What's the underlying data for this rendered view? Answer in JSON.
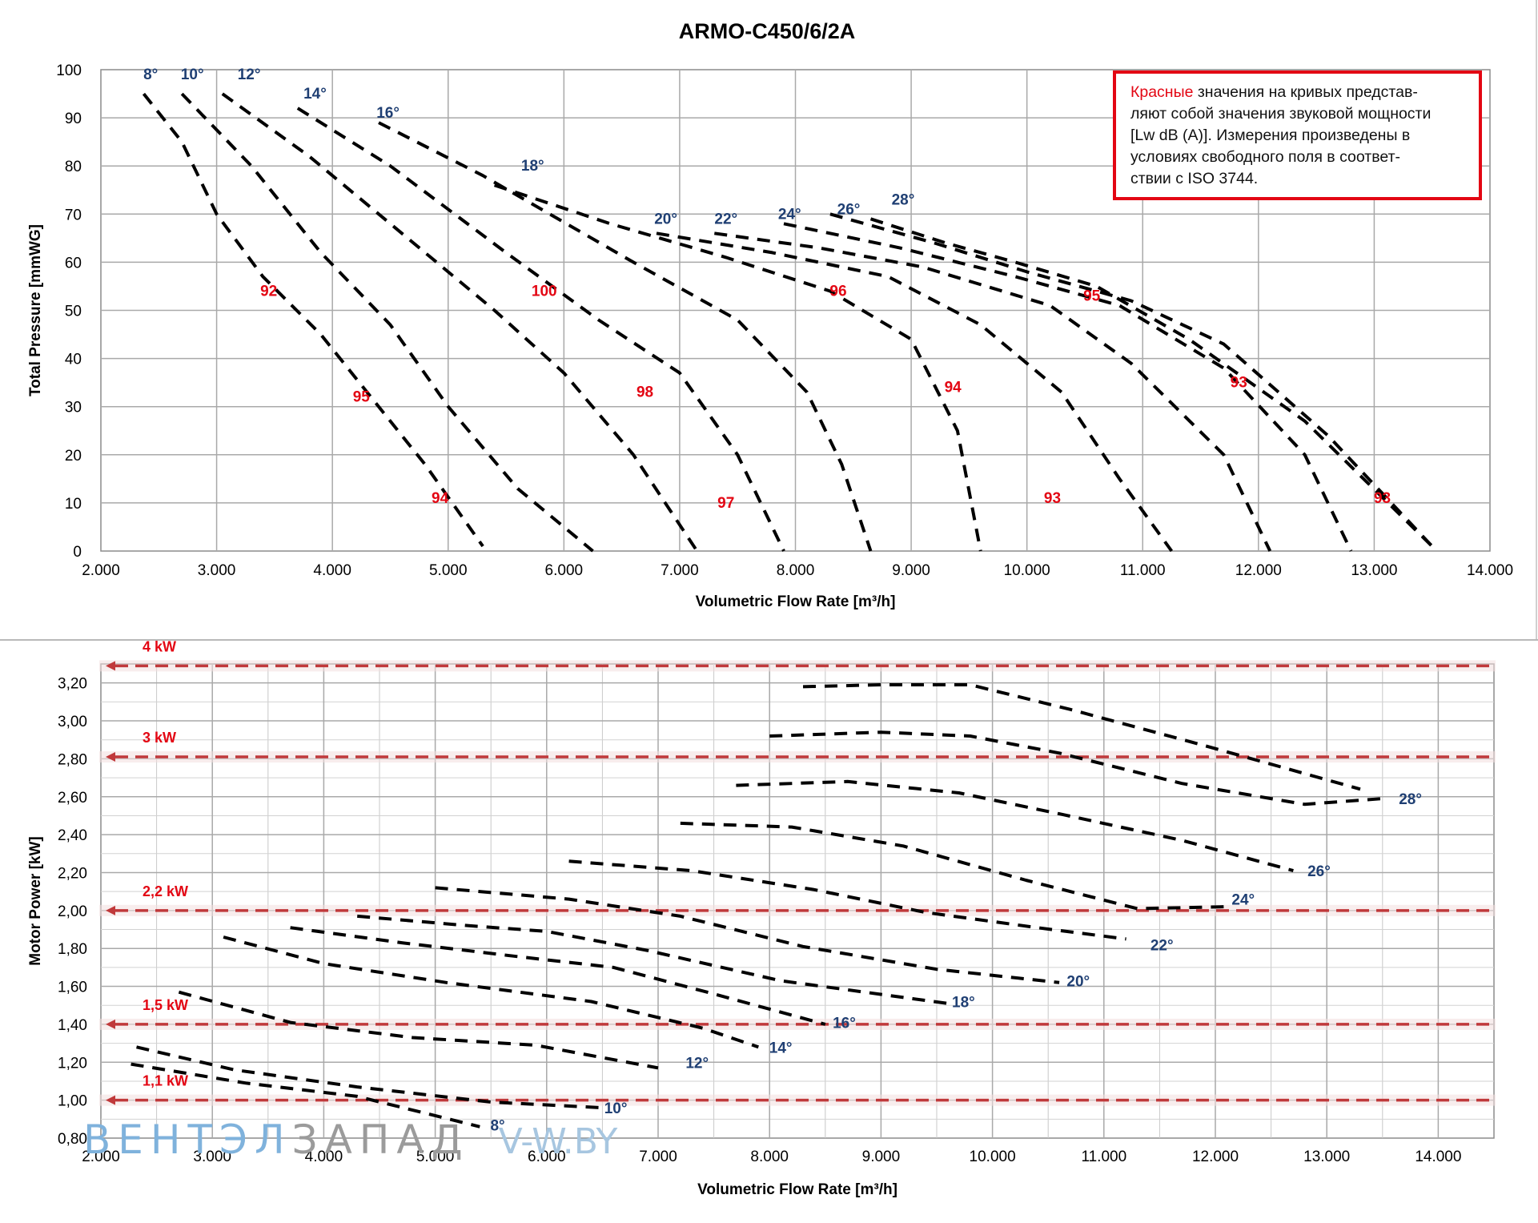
{
  "title": "ARMO-C450/6/2A",
  "note": {
    "red_word": "Красные",
    "rest_first_line": " значения на кривых представ-",
    "lines": [
      "ляют собой значения звуковой мощности",
      "[Lw dB (A)]. Измерения произведены в",
      "условиях свободного поля в соответ-",
      "ствии с ISO 3744."
    ]
  },
  "watermark": {
    "part1": "ВЕНТЭЛ",
    "part2": "ЗАПАД",
    "part3": "V-W.BY"
  },
  "colors": {
    "curve": "#000000",
    "blade_label": "#1f3f73",
    "sound_label": "#e30613",
    "power_line": "#c0393b",
    "grid": "#a9a9a9"
  },
  "chart_data": [
    {
      "type": "line",
      "title": "ARMO-C450/6/2A",
      "xlabel": "Volumetric Flow Rate  [m³/h]",
      "ylabel": "Total Pressure [mmWG]",
      "xlim": [
        2000,
        14000
      ],
      "ylim": [
        0,
        100
      ],
      "x_ticks": [
        "2.000",
        "3.000",
        "4.000",
        "5.000",
        "6.000",
        "7.000",
        "8.000",
        "9.000",
        "10.000",
        "11.000",
        "12.000",
        "13.000",
        "14.000"
      ],
      "y_ticks": [
        "0",
        "10",
        "20",
        "30",
        "40",
        "50",
        "60",
        "70",
        "80",
        "90",
        "100"
      ],
      "grid": true,
      "series": [
        {
          "name": "8°",
          "points": [
            [
              2370,
              95
            ],
            [
              2700,
              85
            ],
            [
              3000,
              70
            ],
            [
              3400,
              57
            ],
            [
              3900,
              45
            ],
            [
              4300,
              33
            ],
            [
              4800,
              18
            ],
            [
              5300,
              1
            ]
          ]
        },
        {
          "name": "10°",
          "points": [
            [
              2700,
              95
            ],
            [
              3300,
              80
            ],
            [
              3900,
              62
            ],
            [
              4500,
              47
            ],
            [
              5000,
              30
            ],
            [
              5600,
              13
            ],
            [
              6250,
              0
            ]
          ]
        },
        {
          "name": "12°",
          "points": [
            [
              3050,
              95
            ],
            [
              3800,
              82
            ],
            [
              4600,
              66
            ],
            [
              5400,
              50
            ],
            [
              6000,
              37
            ],
            [
              6600,
              20
            ],
            [
              7150,
              0
            ]
          ]
        },
        {
          "name": "14°",
          "points": [
            [
              3700,
              92
            ],
            [
              4500,
              80
            ],
            [
              5500,
              62
            ],
            [
              6300,
              48
            ],
            [
              7000,
              37
            ],
            [
              7500,
              20
            ],
            [
              7900,
              0
            ]
          ]
        },
        {
          "name": "16°",
          "points": [
            [
              4400,
              89
            ],
            [
              5300,
              78
            ],
            [
              6600,
              60
            ],
            [
              7500,
              48
            ],
            [
              8100,
              33
            ],
            [
              8400,
              18
            ],
            [
              8650,
              0
            ]
          ]
        },
        {
          "name": "18°",
          "points": [
            [
              5400,
              76
            ],
            [
              6400,
              68
            ],
            [
              7400,
              61
            ],
            [
              8300,
              54
            ],
            [
              9000,
              44
            ],
            [
              9400,
              25
            ],
            [
              9600,
              0
            ]
          ]
        },
        {
          "name": "20°",
          "points": [
            [
              6800,
              66
            ],
            [
              7800,
              62
            ],
            [
              8800,
              57
            ],
            [
              9600,
              47
            ],
            [
              10300,
              33
            ],
            [
              10800,
              15
            ],
            [
              11250,
              0
            ]
          ]
        },
        {
          "name": "22°",
          "points": [
            [
              7300,
              66
            ],
            [
              8200,
              63
            ],
            [
              9100,
              59
            ],
            [
              10200,
              51
            ],
            [
              10900,
              39
            ],
            [
              11700,
              20
            ],
            [
              12100,
              0
            ]
          ]
        },
        {
          "name": "24°",
          "points": [
            [
              7900,
              68
            ],
            [
              8900,
              63
            ],
            [
              9900,
              57
            ],
            [
              10800,
              51
            ],
            [
              11700,
              38
            ],
            [
              12400,
              20
            ],
            [
              12800,
              0
            ]
          ]
        },
        {
          "name": "26°",
          "points": [
            [
              8300,
              70
            ],
            [
              9200,
              64
            ],
            [
              10000,
              58
            ],
            [
              10900,
              52
            ],
            [
              11700,
              43
            ],
            [
              12600,
              24
            ],
            [
              13500,
              1
            ]
          ]
        },
        {
          "name": "28°",
          "points": [
            [
              8650,
              69
            ],
            [
              9300,
              64
            ],
            [
              9900,
              60
            ],
            [
              10600,
              55
            ],
            [
              11400,
              44
            ],
            [
              12400,
              27
            ],
            [
              13500,
              1
            ]
          ]
        }
      ],
      "blade_labels": [
        {
          "text": "8°",
          "x": 2430,
          "y": 98
        },
        {
          "text": "10°",
          "x": 2790,
          "y": 98
        },
        {
          "text": "12°",
          "x": 3280,
          "y": 98
        },
        {
          "text": "14°",
          "x": 3850,
          "y": 94
        },
        {
          "text": "16°",
          "x": 4480,
          "y": 90
        },
        {
          "text": "18°",
          "x": 5730,
          "y": 79
        },
        {
          "text": "20°",
          "x": 6880,
          "y": 68
        },
        {
          "text": "22°",
          "x": 7400,
          "y": 68
        },
        {
          "text": "24°",
          "x": 7950,
          "y": 69
        },
        {
          "text": "26°",
          "x": 8460,
          "y": 70
        },
        {
          "text": "28°",
          "x": 8930,
          "y": 72
        }
      ],
      "sound_labels": [
        {
          "text": "92",
          "x": 3450,
          "y": 53
        },
        {
          "text": "100",
          "x": 5830,
          "y": 53
        },
        {
          "text": "96",
          "x": 8370,
          "y": 53
        },
        {
          "text": "95",
          "x": 10560,
          "y": 52
        },
        {
          "text": "95",
          "x": 4250,
          "y": 31
        },
        {
          "text": "98",
          "x": 6700,
          "y": 32
        },
        {
          "text": "94",
          "x": 9360,
          "y": 33
        },
        {
          "text": "93",
          "x": 11830,
          "y": 34
        },
        {
          "text": "94",
          "x": 4930,
          "y": 10
        },
        {
          "text": "97",
          "x": 7400,
          "y": 9
        },
        {
          "text": "93",
          "x": 10220,
          "y": 10
        },
        {
          "text": "93",
          "x": 13070,
          "y": 10
        }
      ]
    },
    {
      "type": "line",
      "title": "",
      "xlabel": "Volumetric Flow Rate  [m³/h]",
      "ylabel": "Motor Power [kW]",
      "xlim": [
        2000,
        14500
      ],
      "ylim": [
        0.8,
        3.3
      ],
      "x_ticks": [
        "2.000",
        "3.000",
        "4.000",
        "5.000",
        "6.000",
        "7.000",
        "8.000",
        "9.000",
        "10.000",
        "11.000",
        "12.000",
        "13.000",
        "14.000"
      ],
      "y_ticks": [
        "0,80",
        "1,00",
        "1,20",
        "1,40",
        "1,60",
        "1,80",
        "2,00",
        "2,20",
        "2,40",
        "2,60",
        "2,80",
        "3,00",
        "3,20"
      ],
      "grid": true,
      "power_lines": [
        {
          "label": "1,1 kW",
          "value": 1.0
        },
        {
          "label": "1,5 kW",
          "value": 1.4
        },
        {
          "label": "2,2 kW",
          "value": 2.0
        },
        {
          "label": "3 kW",
          "value": 2.81
        },
        {
          "label": "4 kW",
          "value": 3.29
        }
      ],
      "series": [
        {
          "name": "8°",
          "points": [
            [
              2270,
              1.19
            ],
            [
              3300,
              1.09
            ],
            [
              4300,
              1.02
            ],
            [
              5400,
              0.86
            ]
          ]
        },
        {
          "name": "10°",
          "points": [
            [
              2320,
              1.28
            ],
            [
              3200,
              1.16
            ],
            [
              4300,
              1.07
            ],
            [
              5500,
              0.99
            ],
            [
              6500,
              0.96
            ]
          ]
        },
        {
          "name": "12°",
          "points": [
            [
              2700,
              1.57
            ],
            [
              3700,
              1.41
            ],
            [
              4800,
              1.33
            ],
            [
              5900,
              1.29
            ],
            [
              7000,
              1.17
            ]
          ]
        },
        {
          "name": "14°",
          "points": [
            [
              3100,
              1.86
            ],
            [
              4000,
              1.72
            ],
            [
              5100,
              1.62
            ],
            [
              6400,
              1.52
            ],
            [
              7400,
              1.38
            ],
            [
              7900,
              1.28
            ]
          ]
        },
        {
          "name": "16°",
          "points": [
            [
              3700,
              1.91
            ],
            [
              4700,
              1.83
            ],
            [
              5700,
              1.76
            ],
            [
              6600,
              1.7
            ],
            [
              7500,
              1.56
            ],
            [
              8500,
              1.4
            ]
          ]
        },
        {
          "name": "18°",
          "points": [
            [
              4300,
              1.97
            ],
            [
              5300,
              1.92
            ],
            [
              6000,
              1.89
            ],
            [
              6900,
              1.79
            ],
            [
              8100,
              1.63
            ],
            [
              9600,
              1.51
            ]
          ]
        },
        {
          "name": "20°",
          "points": [
            [
              5000,
              2.12
            ],
            [
              6200,
              2.06
            ],
            [
              7200,
              1.97
            ],
            [
              8300,
              1.81
            ],
            [
              9500,
              1.69
            ],
            [
              10600,
              1.62
            ]
          ]
        },
        {
          "name": "22°",
          "points": [
            [
              6200,
              2.26
            ],
            [
              7300,
              2.21
            ],
            [
              8400,
              2.11
            ],
            [
              9400,
              1.99
            ],
            [
              10400,
              1.91
            ],
            [
              11200,
              1.85
            ]
          ]
        },
        {
          "name": "24°",
          "points": [
            [
              7200,
              2.46
            ],
            [
              8200,
              2.44
            ],
            [
              9200,
              2.34
            ],
            [
              10300,
              2.16
            ],
            [
              11300,
              2.01
            ],
            [
              12100,
              2.02
            ]
          ]
        },
        {
          "name": "26°",
          "points": [
            [
              7700,
              2.66
            ],
            [
              8700,
              2.68
            ],
            [
              9700,
              2.62
            ],
            [
              10600,
              2.51
            ],
            [
              11700,
              2.37
            ],
            [
              12700,
              2.21
            ]
          ]
        },
        {
          "name": "28°",
          "points": [
            [
              8000,
              2.92
            ],
            [
              9000,
              2.94
            ],
            [
              9800,
              2.92
            ],
            [
              10600,
              2.83
            ],
            [
              11700,
              2.67
            ],
            [
              12800,
              2.56
            ],
            [
              13500,
              2.59
            ]
          ]
        },
        {
          "name": "",
          "points": [
            [
              8300,
              3.18
            ],
            [
              9000,
              3.19
            ],
            [
              9800,
              3.19
            ],
            [
              10700,
              3.06
            ],
            [
              11900,
              2.87
            ],
            [
              13300,
              2.64
            ]
          ]
        }
      ],
      "blade_labels": [
        {
          "text": "8°",
          "x": 5560,
          "y": 0.84
        },
        {
          "text": "10°",
          "x": 6620,
          "y": 0.93
        },
        {
          "text": "12°",
          "x": 7350,
          "y": 1.17
        },
        {
          "text": "14°",
          "x": 8100,
          "y": 1.25
        },
        {
          "text": "16°",
          "x": 8670,
          "y": 1.38
        },
        {
          "text": "18°",
          "x": 9740,
          "y": 1.49
        },
        {
          "text": "20°",
          "x": 10770,
          "y": 1.6
        },
        {
          "text": "22°",
          "x": 11520,
          "y": 1.79
        },
        {
          "text": "24°",
          "x": 12250,
          "y": 2.03
        },
        {
          "text": "26°",
          "x": 12930,
          "y": 2.18
        },
        {
          "text": "28°",
          "x": 13750,
          "y": 2.56
        }
      ]
    }
  ]
}
